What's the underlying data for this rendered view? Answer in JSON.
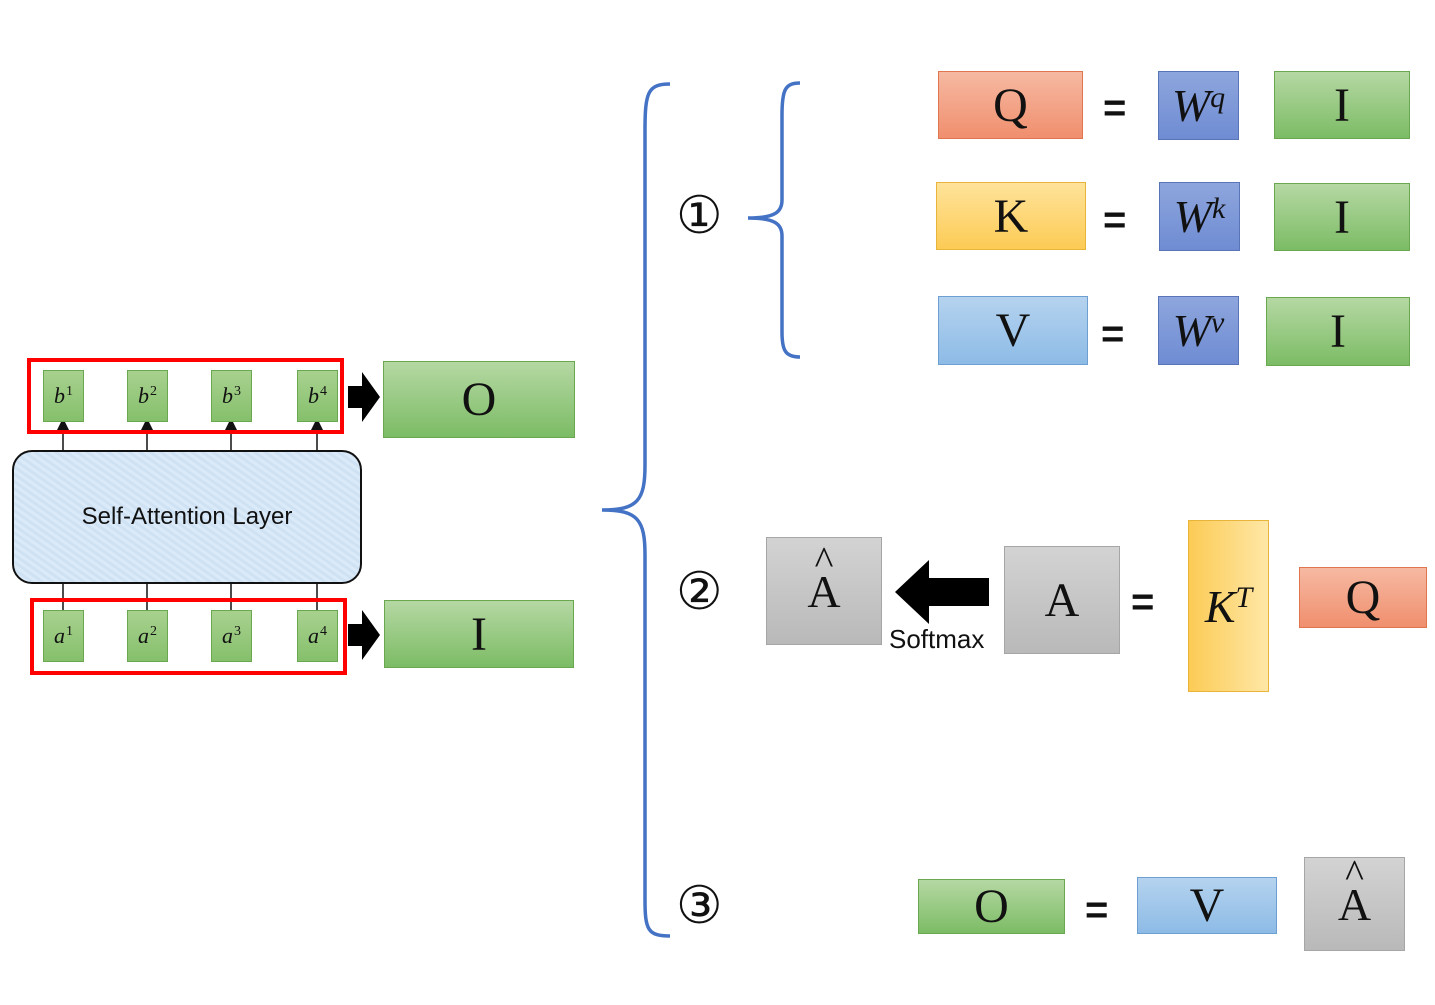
{
  "layer_label": "Self-Attention Layer",
  "output_vectors": [
    {
      "base": "b",
      "sup": "1"
    },
    {
      "base": "b",
      "sup": "2"
    },
    {
      "base": "b",
      "sup": "3"
    },
    {
      "base": "b",
      "sup": "4"
    }
  ],
  "input_vectors": [
    {
      "base": "a",
      "sup": "1"
    },
    {
      "base": "a",
      "sup": "2"
    },
    {
      "base": "a",
      "sup": "3"
    },
    {
      "base": "a",
      "sup": "4"
    }
  ],
  "matrix_O": "O",
  "matrix_I": "I",
  "step_markers": {
    "one": "①",
    "two": "②",
    "three": "③"
  },
  "equals": "=",
  "step1": [
    {
      "lhs": "Q",
      "w_base": "W",
      "w_sup": "q",
      "rhs": "I"
    },
    {
      "lhs": "K",
      "w_base": "W",
      "w_sup": "k",
      "rhs": "I"
    },
    {
      "lhs": "V",
      "w_base": "W",
      "w_sup": "v",
      "rhs": "I"
    }
  ],
  "step2": {
    "a_hat_base": "A",
    "a_hat_accent": "^",
    "softmax_label": "Softmax",
    "a": "A",
    "kt_base": "K",
    "kt_sup": "T",
    "q": "Q"
  },
  "step3": {
    "o": "O",
    "v": "V",
    "a_hat_base": "A",
    "a_hat_accent": "^"
  },
  "colors": {
    "bracket": "#4472c4",
    "highlight": "#ff0000",
    "q": "#f4a183",
    "k": "#fdd77a",
    "v": "#a9cbec",
    "w": "#7f99d9",
    "io": "#9dcb87",
    "a": "#c8c8c8"
  }
}
